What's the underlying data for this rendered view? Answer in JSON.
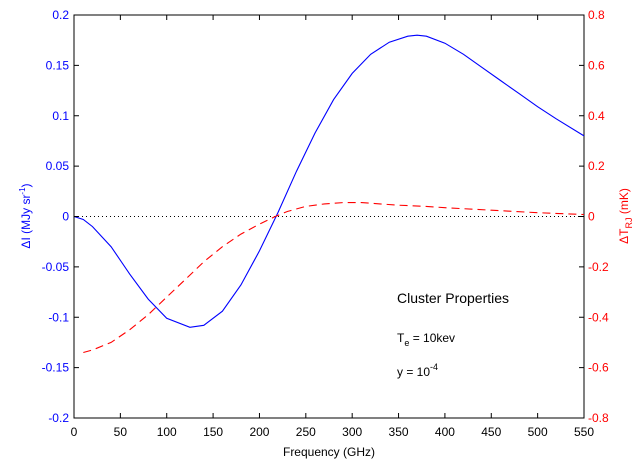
{
  "chart_data": {
    "type": "line",
    "xlabel": "Frequency (GHz)",
    "xlim": [
      0,
      550
    ],
    "x_ticks": [
      0,
      50,
      100,
      150,
      200,
      250,
      300,
      350,
      400,
      450,
      500,
      550
    ],
    "left_axis": {
      "label_prefix": "ΔI (MJy sr",
      "label_sup": "-1",
      "label_suffix": ")",
      "color": "#0000ff",
      "ylim": [
        -0.2,
        0.2
      ],
      "ticks": [
        "-0.2",
        "-0.15",
        "-0.1",
        "-0.05",
        "0",
        "0.05",
        "0.1",
        "0.15",
        "0.2"
      ]
    },
    "right_axis": {
      "label_prefix": "ΔT",
      "label_sub": "RJ",
      "label_suffix": " (mK)",
      "color": "#ff0000",
      "ylim": [
        -0.8,
        0.8
      ],
      "ticks": [
        "-0.8",
        "-0.6",
        "-0.4",
        "-0.2",
        "0",
        "0.2",
        "0.4",
        "0.6",
        "0.8"
      ]
    },
    "series": [
      {
        "axis": "left",
        "style": "solid",
        "color": "#0000ff",
        "x": [
          0,
          10,
          20,
          40,
          60,
          80,
          100,
          125,
          140,
          160,
          180,
          200,
          220,
          240,
          260,
          280,
          300,
          320,
          340,
          360,
          370,
          380,
          400,
          420,
          440,
          460,
          480,
          500,
          520,
          550
        ],
        "y": [
          0,
          -0.003,
          -0.01,
          -0.03,
          -0.057,
          -0.082,
          -0.101,
          -0.11,
          -0.108,
          -0.094,
          -0.068,
          -0.034,
          0.004,
          0.045,
          0.083,
          0.116,
          0.142,
          0.161,
          0.173,
          0.179,
          0.18,
          0.179,
          0.172,
          0.161,
          0.148,
          0.135,
          0.122,
          0.109,
          0.097,
          0.08
        ]
      },
      {
        "axis": "right",
        "style": "dashed",
        "color": "#ff0000",
        "x": [
          10,
          20,
          40,
          60,
          80,
          100,
          120,
          140,
          160,
          180,
          200,
          217,
          230,
          250,
          270,
          290,
          310,
          330,
          350,
          380,
          400,
          450,
          500,
          550
        ],
        "y": [
          -0.54,
          -0.53,
          -0.5,
          -0.45,
          -0.39,
          -0.32,
          -0.25,
          -0.18,
          -0.12,
          -0.07,
          -0.03,
          0,
          0.02,
          0.04,
          0.05,
          0.055,
          0.055,
          0.05,
          0.045,
          0.04,
          0.035,
          0.025,
          0.015,
          0.008
        ]
      }
    ],
    "zero_line": {
      "style": "dotted",
      "color": "#000000"
    },
    "annotations": {
      "title": "Cluster Properties",
      "te_main": "T",
      "te_sub": "e",
      "te_rest": " = 10kev",
      "y_main": "y = 10",
      "y_sup": "-4"
    }
  }
}
